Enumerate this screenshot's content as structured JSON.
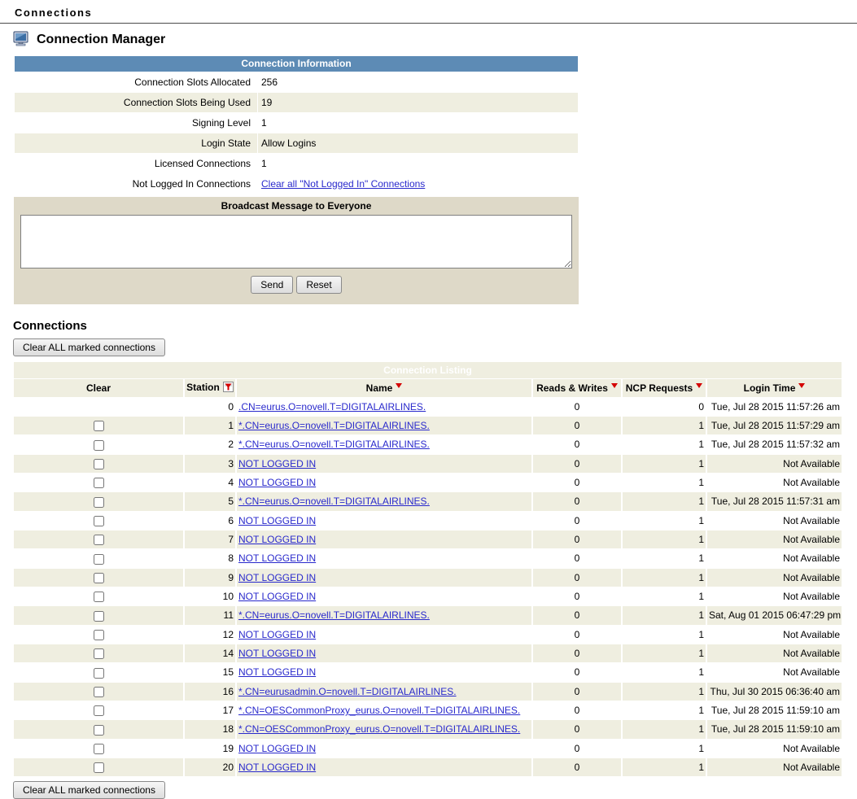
{
  "page": {
    "breadcrumb": "Connections",
    "title": "Connection Manager"
  },
  "info_table": {
    "header": "Connection Information",
    "rows": [
      {
        "label": "Connection Slots Allocated",
        "value": "256",
        "link": false,
        "alt": false
      },
      {
        "label": "Connection Slots Being Used",
        "value": "19",
        "link": false,
        "alt": true
      },
      {
        "label": "Signing Level",
        "value": "1",
        "link": false,
        "alt": false
      },
      {
        "label": "Login State",
        "value": "Allow Logins",
        "link": false,
        "alt": true
      },
      {
        "label": "Licensed Connections",
        "value": "1",
        "link": false,
        "alt": false
      },
      {
        "label": "Not Logged In Connections",
        "value": "Clear all \"Not Logged In\" Connections",
        "link": true,
        "alt": false
      }
    ]
  },
  "broadcast": {
    "title": "Broadcast Message to Everyone",
    "message_value": "",
    "send_label": "Send",
    "reset_label": "Reset"
  },
  "connections": {
    "section_title": "Connections",
    "clear_all_label": "Clear ALL marked connections",
    "table_header": "Connection Listing",
    "columns": [
      "Clear",
      "Station",
      "Name",
      "Reads & Writes",
      "NCP Requests",
      "Login Time"
    ],
    "rows": [
      {
        "checkbox": false,
        "station": "0",
        "name": ".CN=eurus.O=novell.T=DIGITALAIRLINES.",
        "reads_writes": "0",
        "ncp_requests": "0",
        "login_time": "Tue, Jul 28 2015 11:57:26 am"
      },
      {
        "checkbox": true,
        "station": "1",
        "name": "*.CN=eurus.O=novell.T=DIGITALAIRLINES.",
        "reads_writes": "0",
        "ncp_requests": "1",
        "login_time": "Tue, Jul 28 2015 11:57:29 am"
      },
      {
        "checkbox": true,
        "station": "2",
        "name": "*.CN=eurus.O=novell.T=DIGITALAIRLINES.",
        "reads_writes": "0",
        "ncp_requests": "1",
        "login_time": "Tue, Jul 28 2015 11:57:32 am"
      },
      {
        "checkbox": true,
        "station": "3",
        "name": "NOT LOGGED IN",
        "reads_writes": "0",
        "ncp_requests": "1",
        "login_time": "Not Available"
      },
      {
        "checkbox": true,
        "station": "4",
        "name": "NOT LOGGED IN",
        "reads_writes": "0",
        "ncp_requests": "1",
        "login_time": "Not Available"
      },
      {
        "checkbox": true,
        "station": "5",
        "name": "*.CN=eurus.O=novell.T=DIGITALAIRLINES.",
        "reads_writes": "0",
        "ncp_requests": "1",
        "login_time": "Tue, Jul 28 2015 11:57:31 am"
      },
      {
        "checkbox": true,
        "station": "6",
        "name": "NOT LOGGED IN",
        "reads_writes": "0",
        "ncp_requests": "1",
        "login_time": "Not Available"
      },
      {
        "checkbox": true,
        "station": "7",
        "name": "NOT LOGGED IN",
        "reads_writes": "0",
        "ncp_requests": "1",
        "login_time": "Not Available"
      },
      {
        "checkbox": true,
        "station": "8",
        "name": "NOT LOGGED IN",
        "reads_writes": "0",
        "ncp_requests": "1",
        "login_time": "Not Available"
      },
      {
        "checkbox": true,
        "station": "9",
        "name": "NOT LOGGED IN",
        "reads_writes": "0",
        "ncp_requests": "1",
        "login_time": "Not Available"
      },
      {
        "checkbox": true,
        "station": "10",
        "name": "NOT LOGGED IN",
        "reads_writes": "0",
        "ncp_requests": "1",
        "login_time": "Not Available"
      },
      {
        "checkbox": true,
        "station": "11",
        "name": "*.CN=eurus.O=novell.T=DIGITALAIRLINES.",
        "reads_writes": "0",
        "ncp_requests": "1",
        "login_time": "Sat, Aug 01 2015 06:47:29 pm"
      },
      {
        "checkbox": true,
        "station": "12",
        "name": "NOT LOGGED IN",
        "reads_writes": "0",
        "ncp_requests": "1",
        "login_time": "Not Available"
      },
      {
        "checkbox": true,
        "station": "14",
        "name": "NOT LOGGED IN",
        "reads_writes": "0",
        "ncp_requests": "1",
        "login_time": "Not Available"
      },
      {
        "checkbox": true,
        "station": "15",
        "name": "NOT LOGGED IN",
        "reads_writes": "0",
        "ncp_requests": "1",
        "login_time": "Not Available"
      },
      {
        "checkbox": true,
        "station": "16",
        "name": "*.CN=eurusadmin.O=novell.T=DIGITALAIRLINES.",
        "reads_writes": "0",
        "ncp_requests": "1",
        "login_time": "Thu, Jul 30 2015 06:36:40 am"
      },
      {
        "checkbox": true,
        "station": "17",
        "name": "*.CN=OESCommonProxy_eurus.O=novell.T=DIGITALAIRLINES.",
        "reads_writes": "0",
        "ncp_requests": "1",
        "login_time": "Tue, Jul 28 2015 11:59:10 am"
      },
      {
        "checkbox": true,
        "station": "18",
        "name": "*.CN=OESCommonProxy_eurus.O=novell.T=DIGITALAIRLINES.",
        "reads_writes": "0",
        "ncp_requests": "1",
        "login_time": "Tue, Jul 28 2015 11:59:10 am"
      },
      {
        "checkbox": true,
        "station": "19",
        "name": "NOT LOGGED IN",
        "reads_writes": "0",
        "ncp_requests": "1",
        "login_time": "Not Available"
      },
      {
        "checkbox": true,
        "station": "20",
        "name": "NOT LOGGED IN",
        "reads_writes": "0",
        "ncp_requests": "1",
        "login_time": "Not Available"
      }
    ]
  },
  "colors": {
    "header_blue": "#5d8bb5",
    "alt_row": "#efeee0",
    "link_blue": "#2929cc",
    "arrow_red": "#d40000",
    "panel_bg": "#ded9c8"
  }
}
